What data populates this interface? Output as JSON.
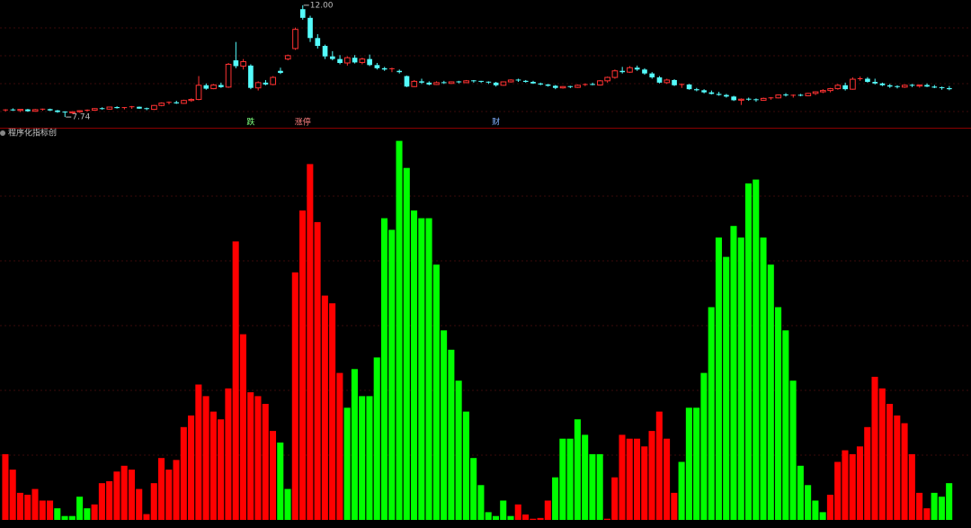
{
  "chart_data": [
    {
      "type": "candlestick",
      "open": [
        7.98,
        8.01,
        7.99,
        8.03,
        7.96,
        8.02,
        8.04,
        7.99,
        7.93,
        7.9,
        7.94,
        7.98,
        8.0,
        8.06,
        8.04,
        8.12,
        8.08,
        8.1,
        8.13,
        8.06,
        8.03,
        8.18,
        8.27,
        8.3,
        8.26,
        8.37,
        8.41,
        8.95,
        8.82,
        8.96,
        8.88,
        9.9,
        9.68,
        9.7,
        8.85,
        9.05,
        8.98,
        9.5,
        9.95,
        10.35,
        11.85,
        11.52,
        10.75,
        10.45,
        10.05,
        9.95,
        9.8,
        10.0,
        9.82,
        9.95,
        9.72,
        9.6,
        9.55,
        9.5,
        9.3,
        8.9,
        9.1,
        9.05,
        8.98,
        9.05,
        9.02,
        9.08,
        9.05,
        9.12,
        9.1,
        9.07,
        9.05,
        8.95,
        9.08,
        9.15,
        9.12,
        9.08,
        9.02,
        8.98,
        8.93,
        8.85,
        8.9,
        8.87,
        8.95,
        8.98,
        8.96,
        9.12,
        9.25,
        9.5,
        9.45,
        9.62,
        9.55,
        9.4,
        9.25,
        9.05,
        9.15,
        8.95,
        8.98,
        8.8,
        8.76,
        8.68,
        8.62,
        8.58,
        8.52,
        8.38,
        8.42,
        8.4,
        8.38,
        8.45,
        8.47,
        8.58,
        8.55,
        8.57,
        8.55,
        8.64,
        8.7,
        8.75,
        8.82,
        8.95,
        8.8,
        9.18,
        9.2,
        9.08,
        9.02,
        8.95,
        8.9,
        8.88,
        8.95,
        8.92,
        8.96,
        8.9,
        8.86,
        8.84
      ],
      "high": [
        8.04,
        8.07,
        8.03,
        8.05,
        8.05,
        8.06,
        8.06,
        8.01,
        7.96,
        7.96,
        8.0,
        8.03,
        8.08,
        8.11,
        8.13,
        8.15,
        8.12,
        8.16,
        8.14,
        8.1,
        8.2,
        8.3,
        8.33,
        8.36,
        8.4,
        8.45,
        9.3,
        9.02,
        9.0,
        9.05,
        9.8,
        10.6,
        9.95,
        9.75,
        9.1,
        9.15,
        9.3,
        9.62,
        10.12,
        11.15,
        12.0,
        11.6,
        10.9,
        10.5,
        10.25,
        10.1,
        10.05,
        10.1,
        10.0,
        10.12,
        9.8,
        9.65,
        9.62,
        9.55,
        9.32,
        9.15,
        9.2,
        9.1,
        9.1,
        9.12,
        9.1,
        9.12,
        9.15,
        9.15,
        9.12,
        9.1,
        9.08,
        9.1,
        9.18,
        9.2,
        9.15,
        9.12,
        9.05,
        9.0,
        8.96,
        8.92,
        8.93,
        8.98,
        9.02,
        9.05,
        9.15,
        9.28,
        9.55,
        9.65,
        9.68,
        9.7,
        9.6,
        9.45,
        9.3,
        9.2,
        9.18,
        9.02,
        9.0,
        8.85,
        8.8,
        8.75,
        8.7,
        8.62,
        8.55,
        8.45,
        8.48,
        8.45,
        8.48,
        8.5,
        8.6,
        8.65,
        8.6,
        8.62,
        8.66,
        8.72,
        8.8,
        8.85,
        9.0,
        9.05,
        9.25,
        9.28,
        9.26,
        9.2,
        9.05,
        9.0,
        8.95,
        8.98,
        9.0,
        8.98,
        9.02,
        8.96,
        8.9,
        8.92
      ],
      "low": [
        7.95,
        7.97,
        7.93,
        7.94,
        7.94,
        7.98,
        7.97,
        7.9,
        7.74,
        7.86,
        7.9,
        7.94,
        7.98,
        8.02,
        8.02,
        8.06,
        8.03,
        8.05,
        8.05,
        8.0,
        8.01,
        8.15,
        8.22,
        8.24,
        8.24,
        8.32,
        8.38,
        8.78,
        8.8,
        8.85,
        8.85,
        9.6,
        9.55,
        8.8,
        8.75,
        8.95,
        8.95,
        9.38,
        9.9,
        10.3,
        11.45,
        10.6,
        10.35,
        9.95,
        9.9,
        9.75,
        9.7,
        9.78,
        9.75,
        9.68,
        9.55,
        9.5,
        9.45,
        9.4,
        8.88,
        8.88,
        9.0,
        8.95,
        8.96,
        9.0,
        9.0,
        9.02,
        9.03,
        9.05,
        9.04,
        9.0,
        8.9,
        8.93,
        9.05,
        9.08,
        9.05,
        9.0,
        8.95,
        8.9,
        8.8,
        8.82,
        8.84,
        8.85,
        8.92,
        8.95,
        8.94,
        9.05,
        9.2,
        9.4,
        9.42,
        9.5,
        9.35,
        9.2,
        9.02,
        9.0,
        8.92,
        8.85,
        8.78,
        8.72,
        8.64,
        8.6,
        8.55,
        8.48,
        8.35,
        8.2,
        8.36,
        8.32,
        8.36,
        8.4,
        8.45,
        8.52,
        8.48,
        8.53,
        8.53,
        8.58,
        8.65,
        8.68,
        8.78,
        8.75,
        8.78,
        9.12,
        9.05,
        8.98,
        8.92,
        8.85,
        8.83,
        8.85,
        8.88,
        8.86,
        8.88,
        8.84,
        8.78,
        8.76
      ],
      "close": [
        8.01,
        7.99,
        8.03,
        7.96,
        8.02,
        8.04,
        7.99,
        7.93,
        7.9,
        7.94,
        7.98,
        8.0,
        8.06,
        8.04,
        8.12,
        8.08,
        8.1,
        8.13,
        8.06,
        8.03,
        8.18,
        8.27,
        8.3,
        8.26,
        8.37,
        8.41,
        8.95,
        8.82,
        8.96,
        8.88,
        9.75,
        9.68,
        9.85,
        8.85,
        9.05,
        8.98,
        9.25,
        9.42,
        10.08,
        11.08,
        11.52,
        10.75,
        10.45,
        10.05,
        9.95,
        9.8,
        10.0,
        9.82,
        9.95,
        9.72,
        9.6,
        9.55,
        9.58,
        9.45,
        8.9,
        9.1,
        9.05,
        8.98,
        9.05,
        9.02,
        9.08,
        9.05,
        9.12,
        9.1,
        9.07,
        9.05,
        8.95,
        9.08,
        9.15,
        9.12,
        9.08,
        9.02,
        8.98,
        8.93,
        8.85,
        8.9,
        8.87,
        8.95,
        8.98,
        8.96,
        9.12,
        9.25,
        9.5,
        9.45,
        9.62,
        9.55,
        9.4,
        9.25,
        9.05,
        9.15,
        8.95,
        8.98,
        8.8,
        8.76,
        8.68,
        8.62,
        8.58,
        8.52,
        8.38,
        8.42,
        8.4,
        8.38,
        8.45,
        8.47,
        8.58,
        8.55,
        8.57,
        8.55,
        8.64,
        8.7,
        8.75,
        8.82,
        8.95,
        8.8,
        9.18,
        9.2,
        9.08,
        9.02,
        8.95,
        8.9,
        8.88,
        8.95,
        8.92,
        8.96,
        8.9,
        8.86,
        8.84,
        8.8
      ],
      "up_color": "#ff3232",
      "down_color": "#54fcfc",
      "ylim": [
        7.4,
        12.2
      ],
      "annotations": [
        {
          "index": 40,
          "value": 12,
          "label": "12.00"
        },
        {
          "index": 8,
          "value": 7.74,
          "label": "7.74"
        }
      ],
      "signals": [
        {
          "index": 33,
          "label": "跌",
          "color": "#7dff7d"
        },
        {
          "index": 40,
          "label": "涨停",
          "color": "#ff8080"
        },
        {
          "index": 66,
          "label": "财",
          "color": "#80b0ff"
        }
      ]
    },
    {
      "type": "bar",
      "title": "程序化指标创",
      "values": [
        17,
        13,
        7,
        6.5,
        8,
        5,
        5,
        3,
        1,
        1,
        6,
        3,
        4,
        9.5,
        10,
        12.5,
        14,
        13,
        8,
        1.5,
        9.5,
        16,
        13,
        15.5,
        24,
        27,
        35,
        32,
        28,
        26,
        34,
        72,
        48,
        33,
        32,
        30,
        23,
        20,
        8,
        64,
        80,
        92,
        77,
        58,
        56,
        38,
        29,
        39,
        32,
        32,
        42,
        78,
        75,
        98,
        91,
        80,
        78,
        78,
        66,
        49,
        44,
        36,
        28,
        16,
        9,
        2,
        1,
        5,
        1,
        4,
        1.4,
        0.3,
        0.5,
        5,
        11,
        21,
        21,
        26,
        22,
        17,
        17,
        0.3,
        11,
        22,
        21,
        21,
        19,
        23,
        28,
        21,
        7,
        15,
        29,
        29,
        38,
        55,
        73,
        68,
        76,
        73,
        87,
        88,
        73,
        66,
        55,
        49,
        36,
        14,
        9,
        5,
        2,
        6.5,
        15,
        18,
        17,
        19,
        24,
        37,
        34,
        30,
        27,
        25,
        17,
        7,
        3,
        7,
        6,
        9.5
      ],
      "colors": [
        "#ff0000",
        "#ff0000",
        "#ff0000",
        "#ff0000",
        "#ff0000",
        "#ff0000",
        "#ff0000",
        "#00ff00",
        "#00ff00",
        "#00ff00",
        "#00ff00",
        "#00ff00",
        "#ff0000",
        "#ff0000",
        "#ff0000",
        "#ff0000",
        "#ff0000",
        "#ff0000",
        "#ff0000",
        "#ff0000",
        "#ff0000",
        "#ff0000",
        "#ff0000",
        "#ff0000",
        "#ff0000",
        "#ff0000",
        "#ff0000",
        "#ff0000",
        "#ff0000",
        "#ff0000",
        "#ff0000",
        "#ff0000",
        "#ff0000",
        "#ff0000",
        "#ff0000",
        "#ff0000",
        "#ff0000",
        "#00ff00",
        "#00ff00",
        "#ff0000",
        "#ff0000",
        "#ff0000",
        "#ff0000",
        "#ff0000",
        "#ff0000",
        "#ff0000",
        "#00ff00",
        "#00ff00",
        "#00ff00",
        "#00ff00",
        "#00ff00",
        "#00ff00",
        "#00ff00",
        "#00ff00",
        "#00ff00",
        "#00ff00",
        "#00ff00",
        "#00ff00",
        "#00ff00",
        "#00ff00",
        "#00ff00",
        "#00ff00",
        "#00ff00",
        "#00ff00",
        "#00ff00",
        "#00ff00",
        "#00ff00",
        "#00ff00",
        "#00ff00",
        "#ff0000",
        "#ff0000",
        "#ff0000",
        "#ff0000",
        "#ff0000",
        "#00ff00",
        "#00ff00",
        "#00ff00",
        "#00ff00",
        "#00ff00",
        "#00ff00",
        "#00ff00",
        "#ff0000",
        "#ff0000",
        "#ff0000",
        "#ff0000",
        "#ff0000",
        "#ff0000",
        "#ff0000",
        "#ff0000",
        "#ff0000",
        "#ff0000",
        "#00ff00",
        "#00ff00",
        "#00ff00",
        "#00ff00",
        "#00ff00",
        "#00ff00",
        "#00ff00",
        "#00ff00",
        "#00ff00",
        "#00ff00",
        "#00ff00",
        "#00ff00",
        "#00ff00",
        "#00ff00",
        "#00ff00",
        "#00ff00",
        "#00ff00",
        "#00ff00",
        "#00ff00",
        "#00ff00",
        "#ff0000",
        "#ff0000",
        "#ff0000",
        "#ff0000",
        "#ff0000",
        "#ff0000",
        "#ff0000",
        "#ff0000",
        "#ff0000",
        "#ff0000",
        "#ff0000",
        "#ff0000",
        "#ff0000",
        "#ff0000",
        "#00ff00",
        "#00ff00",
        "#00ff00"
      ],
      "ylim": [
        0,
        100
      ]
    }
  ]
}
